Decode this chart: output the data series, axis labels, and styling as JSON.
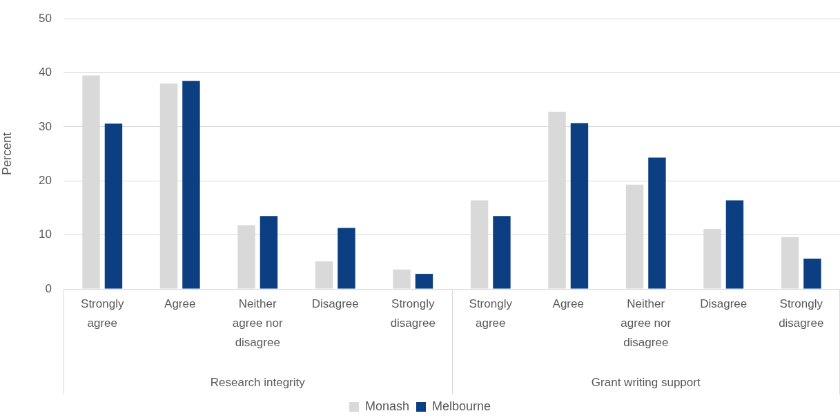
{
  "chart_data": {
    "type": "bar",
    "ylabel": "Percent",
    "categories": [
      "Strongly agree",
      "Agree",
      "Neither agree nor disagree",
      "Disagree",
      "Strongly disagree",
      "Strongly agree",
      "Agree",
      "Neither agree nor disagree",
      "Disagree",
      "Strongly disagree"
    ],
    "series": [
      {
        "name": "Monash",
        "color": "#d9d9d9",
        "values": [
          39.5,
          38.0,
          11.8,
          5.1,
          3.6,
          16.4,
          32.8,
          19.3,
          11.1,
          9.6
        ]
      },
      {
        "name": "Melbourne",
        "color": "#0b3f81",
        "values": [
          30.6,
          38.5,
          13.5,
          11.3,
          2.8,
          13.5,
          30.7,
          24.3,
          16.4,
          5.6
        ]
      }
    ],
    "ylim": [
      0,
      50
    ],
    "yticks": [
      0,
      10,
      20,
      30,
      40,
      50
    ],
    "grid": "y",
    "legend": "bottom",
    "annotations": [
      "Research integrity",
      "Grant writing support"
    ]
  }
}
